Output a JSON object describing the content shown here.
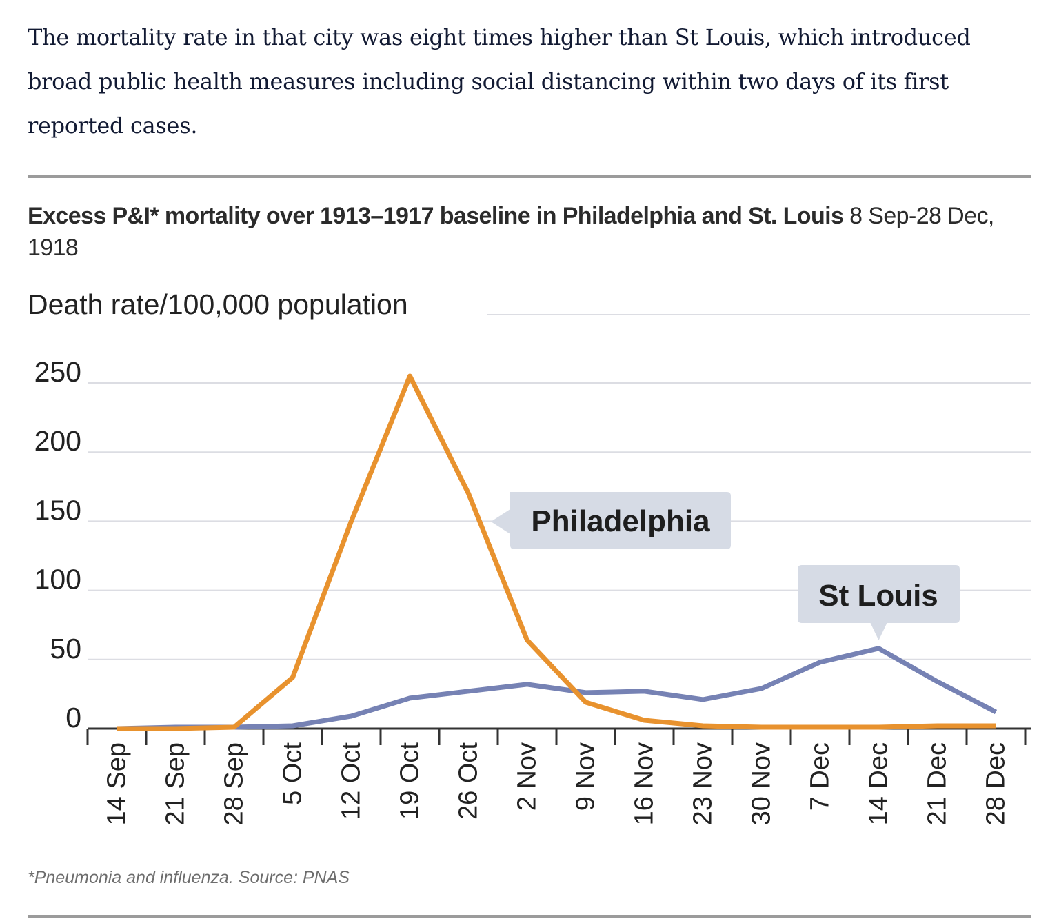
{
  "article": {
    "paragraph": "The mortality rate in that city was eight times higher than St Louis, which introduced broad public health measures including social distancing within two days of its first reported cases."
  },
  "figure": {
    "title_bold": "Excess P&I* mortality over 1913–1917 baseline in Philadelphia and St. Louis",
    "title_light": " 8 Sep-28 Dec, 1918",
    "footnote": "*Pneumonia and influenza.  Source: PNAS"
  },
  "chart_data": {
    "type": "line",
    "title": "Excess P&I* mortality over 1913–1917 baseline in Philadelphia and St. Louis 8 Sep-28 Dec, 1918",
    "xlabel": "",
    "ylabel": "Death rate/100,000 population",
    "ylim": [
      0,
      250
    ],
    "yticks": [
      0,
      50,
      100,
      150,
      200,
      250
    ],
    "grid": true,
    "legend": "inline-labels",
    "categories": [
      "14 Sep",
      "21 Sep",
      "28 Sep",
      "5 Oct",
      "12 Oct",
      "19 Oct",
      "26 Oct",
      "2 Nov",
      "9 Nov",
      "16 Nov",
      "23 Nov",
      "30 Nov",
      "7 Dec",
      "14 Dec",
      "21 Dec",
      "28 Dec"
    ],
    "series": [
      {
        "name": "Philadelphia",
        "color": "#e8922e",
        "values": [
          0,
          0,
          1,
          37,
          150,
          255,
          170,
          64,
          19,
          6,
          2,
          1,
          1,
          1,
          2,
          2
        ]
      },
      {
        "name": "St Louis",
        "color": "#7682b4",
        "values": [
          0,
          1,
          1,
          2,
          9,
          22,
          27,
          32,
          26,
          27,
          21,
          29,
          48,
          58,
          34,
          12
        ]
      }
    ],
    "annotations": [
      {
        "text": "Philadelphia",
        "series": "Philadelphia"
      },
      {
        "text": "St Louis",
        "series": "St Louis"
      }
    ]
  },
  "colors": {
    "philadelphia": "#e8922e",
    "st_louis": "#7682b4",
    "label_box": "#d6dbe5",
    "grid": "#dcdde3",
    "axis": "#333333",
    "rule": "#9b9b9b"
  }
}
